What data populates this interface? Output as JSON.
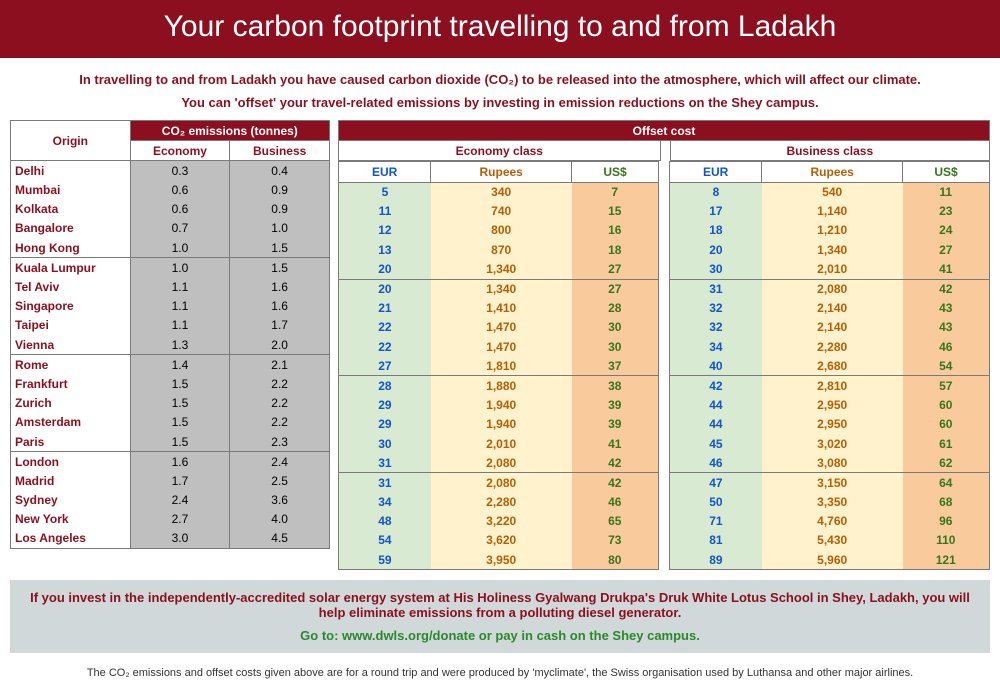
{
  "banner": "Your carbon footprint travelling to and from Ladakh",
  "intro_line1": "In travelling to and from Ladakh you have caused carbon dioxide (CO₂) to be released into the atmosphere, which will affect our climate.",
  "intro_line2": "You can 'offset' your travel-related emissions by investing in emission reductions on the Shey campus.",
  "headers": {
    "origin": "Origin",
    "emissions_main": "CO₂ emissions (tonnes)",
    "economy": "Economy",
    "business": "Business",
    "offset_main": "Offset cost",
    "economy_class": "Economy class",
    "business_class": "Business class",
    "eur": "EUR",
    "rupees": "Rupees",
    "usd": "US$"
  },
  "colors": {
    "banner_bg": "#8b0f1f",
    "banner_text": "#ffffff",
    "accent_text": "#8b0f1f",
    "gray_cell": "#bfbfbf",
    "eur_bg": "#d9ead3",
    "eur_text": "#1155cc",
    "rup_bg": "#fff2cc",
    "rup_text": "#b45f06",
    "usd_bg": "#f9cb9c",
    "usd_text": "#38761d",
    "footer_bg": "#d0d8d9",
    "green_text": "#2a8a2a"
  },
  "group_breaks_after": [
    4,
    9,
    14,
    19
  ],
  "rows": [
    {
      "origin": "Delhi",
      "eco": "0.3",
      "bus": "0.4",
      "e_eur": "5",
      "e_rup": "340",
      "e_usd": "7",
      "b_eur": "8",
      "b_rup": "540",
      "b_usd": "11"
    },
    {
      "origin": "Mumbai",
      "eco": "0.6",
      "bus": "0.9",
      "e_eur": "11",
      "e_rup": "740",
      "e_usd": "15",
      "b_eur": "17",
      "b_rup": "1,140",
      "b_usd": "23"
    },
    {
      "origin": "Kolkata",
      "eco": "0.6",
      "bus": "0.9",
      "e_eur": "12",
      "e_rup": "800",
      "e_usd": "16",
      "b_eur": "18",
      "b_rup": "1,210",
      "b_usd": "24"
    },
    {
      "origin": "Bangalore",
      "eco": "0.7",
      "bus": "1.0",
      "e_eur": "13",
      "e_rup": "870",
      "e_usd": "18",
      "b_eur": "20",
      "b_rup": "1,340",
      "b_usd": "27"
    },
    {
      "origin": "Hong Kong",
      "eco": "1.0",
      "bus": "1.5",
      "e_eur": "20",
      "e_rup": "1,340",
      "e_usd": "27",
      "b_eur": "30",
      "b_rup": "2,010",
      "b_usd": "41"
    },
    {
      "origin": "Kuala Lumpur",
      "eco": "1.0",
      "bus": "1.5",
      "e_eur": "20",
      "e_rup": "1,340",
      "e_usd": "27",
      "b_eur": "31",
      "b_rup": "2,080",
      "b_usd": "42"
    },
    {
      "origin": "Tel Aviv",
      "eco": "1.1",
      "bus": "1.6",
      "e_eur": "21",
      "e_rup": "1,410",
      "e_usd": "28",
      "b_eur": "32",
      "b_rup": "2,140",
      "b_usd": "43"
    },
    {
      "origin": "Singapore",
      "eco": "1.1",
      "bus": "1.6",
      "e_eur": "22",
      "e_rup": "1,470",
      "e_usd": "30",
      "b_eur": "32",
      "b_rup": "2,140",
      "b_usd": "43"
    },
    {
      "origin": "Taipei",
      "eco": "1.1",
      "bus": "1.7",
      "e_eur": "22",
      "e_rup": "1,470",
      "e_usd": "30",
      "b_eur": "34",
      "b_rup": "2,280",
      "b_usd": "46"
    },
    {
      "origin": "Vienna",
      "eco": "1.3",
      "bus": "2.0",
      "e_eur": "27",
      "e_rup": "1,810",
      "e_usd": "37",
      "b_eur": "40",
      "b_rup": "2,680",
      "b_usd": "54"
    },
    {
      "origin": "Rome",
      "eco": "1.4",
      "bus": "2.1",
      "e_eur": "28",
      "e_rup": "1,880",
      "e_usd": "38",
      "b_eur": "42",
      "b_rup": "2,810",
      "b_usd": "57"
    },
    {
      "origin": "Frankfurt",
      "eco": "1.5",
      "bus": "2.2",
      "e_eur": "29",
      "e_rup": "1,940",
      "e_usd": "39",
      "b_eur": "44",
      "b_rup": "2,950",
      "b_usd": "60"
    },
    {
      "origin": "Zurich",
      "eco": "1.5",
      "bus": "2.2",
      "e_eur": "29",
      "e_rup": "1,940",
      "e_usd": "39",
      "b_eur": "44",
      "b_rup": "2,950",
      "b_usd": "60"
    },
    {
      "origin": "Amsterdam",
      "eco": "1.5",
      "bus": "2.2",
      "e_eur": "30",
      "e_rup": "2,010",
      "e_usd": "41",
      "b_eur": "45",
      "b_rup": "3,020",
      "b_usd": "61"
    },
    {
      "origin": "Paris",
      "eco": "1.5",
      "bus": "2.3",
      "e_eur": "31",
      "e_rup": "2,080",
      "e_usd": "42",
      "b_eur": "46",
      "b_rup": "3,080",
      "b_usd": "62"
    },
    {
      "origin": "London",
      "eco": "1.6",
      "bus": "2.4",
      "e_eur": "31",
      "e_rup": "2,080",
      "e_usd": "42",
      "b_eur": "47",
      "b_rup": "3,150",
      "b_usd": "64"
    },
    {
      "origin": "Madrid",
      "eco": "1.7",
      "bus": "2.5",
      "e_eur": "34",
      "e_rup": "2,280",
      "e_usd": "46",
      "b_eur": "50",
      "b_rup": "3,350",
      "b_usd": "68"
    },
    {
      "origin": "Sydney",
      "eco": "2.4",
      "bus": "3.6",
      "e_eur": "48",
      "e_rup": "3,220",
      "e_usd": "65",
      "b_eur": "71",
      "b_rup": "4,760",
      "b_usd": "96"
    },
    {
      "origin": "New York",
      "eco": "2.7",
      "bus": "4.0",
      "e_eur": "54",
      "e_rup": "3,620",
      "e_usd": "73",
      "b_eur": "81",
      "b_rup": "5,430",
      "b_usd": "110"
    },
    {
      "origin": "Los Angeles",
      "eco": "3.0",
      "bus": "4.5",
      "e_eur": "59",
      "e_rup": "3,950",
      "e_usd": "80",
      "b_eur": "89",
      "b_rup": "5,960",
      "b_usd": "121"
    }
  ],
  "footer": {
    "line1": "If you invest in the independently-accredited solar energy system at His Holiness Gyalwang Drukpa's Druk White Lotus School in Shey, Ladakh, you will help eliminate emissions from a polluting diesel generator.",
    "line2": "Go to:  www.dwls.org/donate or pay in cash on the Shey campus."
  },
  "footnote": "The CO₂ emissions and offset costs given above are for a round trip and were produced  by 'myclimate', the Swiss organisation used by Luthansa and other major airlines."
}
